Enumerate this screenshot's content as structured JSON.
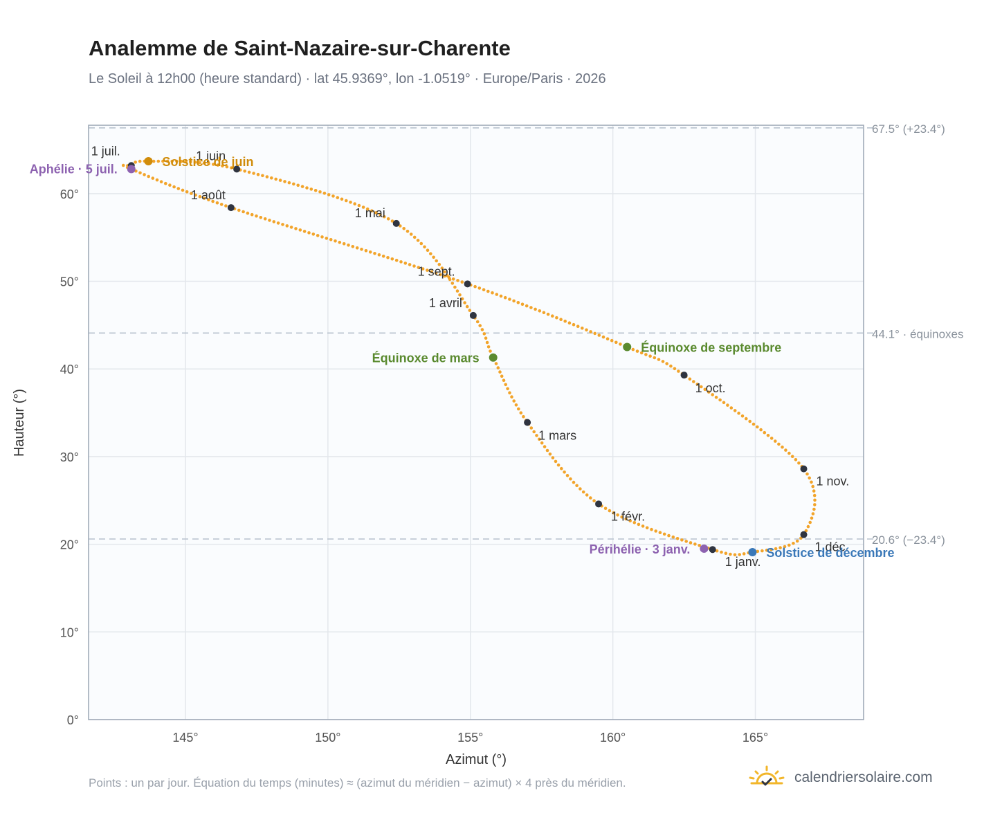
{
  "header": {
    "title": "Analemme de Saint-Nazaire-sur-Charente",
    "subtitle": "Le Soleil à 12h00 (heure standard) · lat 45.9369°, lon -1.0519° · Europe/Paris · 2026"
  },
  "footer": {
    "note": "Points : un par jour. Équation du temps (minutes) ≈ (azimut du méridien − azimut) × 4 près du méridien.",
    "brand": "calendriersolaire.com"
  },
  "colors": {
    "curve": "#f2a42a",
    "month_marker": "#2f3440",
    "equinox": "#5a8a2f",
    "june_solstice": "#d08c0b",
    "december_solstice": "#3a78b8",
    "apsis": "#8d62b0",
    "grid": "#e3e7ec",
    "reference_line": "#b8c2ce",
    "plot_background": "#fafcfe"
  },
  "chart_data": {
    "type": "scatter",
    "xlabel": "Azimut (°)",
    "ylabel": "Hauteur (°)",
    "xlim": [
      141.6,
      168.8
    ],
    "ylim": [
      0,
      67.8
    ],
    "x_ticks": [
      145,
      150,
      155,
      160,
      165
    ],
    "x_tick_labels": [
      "145°",
      "150°",
      "155°",
      "160°",
      "165°"
    ],
    "y_ticks": [
      0,
      10,
      20,
      30,
      40,
      50,
      60
    ],
    "y_tick_labels": [
      "0°",
      "10°",
      "20°",
      "30°",
      "40°",
      "50°",
      "60°"
    ],
    "grid": true,
    "reference_lines": [
      {
        "y": 67.5,
        "label": "67.5° (+23.4°)"
      },
      {
        "y": 44.1,
        "label": "44.1° · équinoxes"
      },
      {
        "y": 20.6,
        "label": "20.6° (−23.4°)"
      }
    ],
    "month_markers": [
      {
        "label": "1 janv.",
        "x": 163.5,
        "y": 19.4
      },
      {
        "label": "1 févr.",
        "x": 159.5,
        "y": 24.6
      },
      {
        "label": "1 mars",
        "x": 157.0,
        "y": 33.9
      },
      {
        "label": "1 avril",
        "x": 155.1,
        "y": 46.1
      },
      {
        "label": "1 mai",
        "x": 152.4,
        "y": 56.6
      },
      {
        "label": "1 juin",
        "x": 146.8,
        "y": 62.8
      },
      {
        "label": "1 juil.",
        "x": 143.1,
        "y": 63.2
      },
      {
        "label": "1 août",
        "x": 146.6,
        "y": 58.4
      },
      {
        "label": "1 sept.",
        "x": 154.9,
        "y": 49.7
      },
      {
        "label": "1 oct.",
        "x": 162.5,
        "y": 39.3
      },
      {
        "label": "1 nov.",
        "x": 166.7,
        "y": 28.6
      },
      {
        "label": "1 déc.",
        "x": 166.7,
        "y": 21.1
      }
    ],
    "events": [
      {
        "label": "Solstice de juin",
        "x": 143.7,
        "y": 63.7,
        "kind": "june_solstice"
      },
      {
        "label": "Aphélie · 5 juil.",
        "x": 143.1,
        "y": 62.8,
        "kind": "apsis"
      },
      {
        "label": "Équinoxe de mars",
        "x": 155.8,
        "y": 41.3,
        "kind": "equinox"
      },
      {
        "label": "Équinoxe de septembre",
        "x": 160.5,
        "y": 42.5,
        "kind": "equinox"
      },
      {
        "label": "Solstice de décembre",
        "x": 164.9,
        "y": 19.1,
        "kind": "december_solstice"
      },
      {
        "label": "Périhélie · 3 janv.",
        "x": 163.2,
        "y": 19.5,
        "kind": "apsis"
      }
    ]
  }
}
